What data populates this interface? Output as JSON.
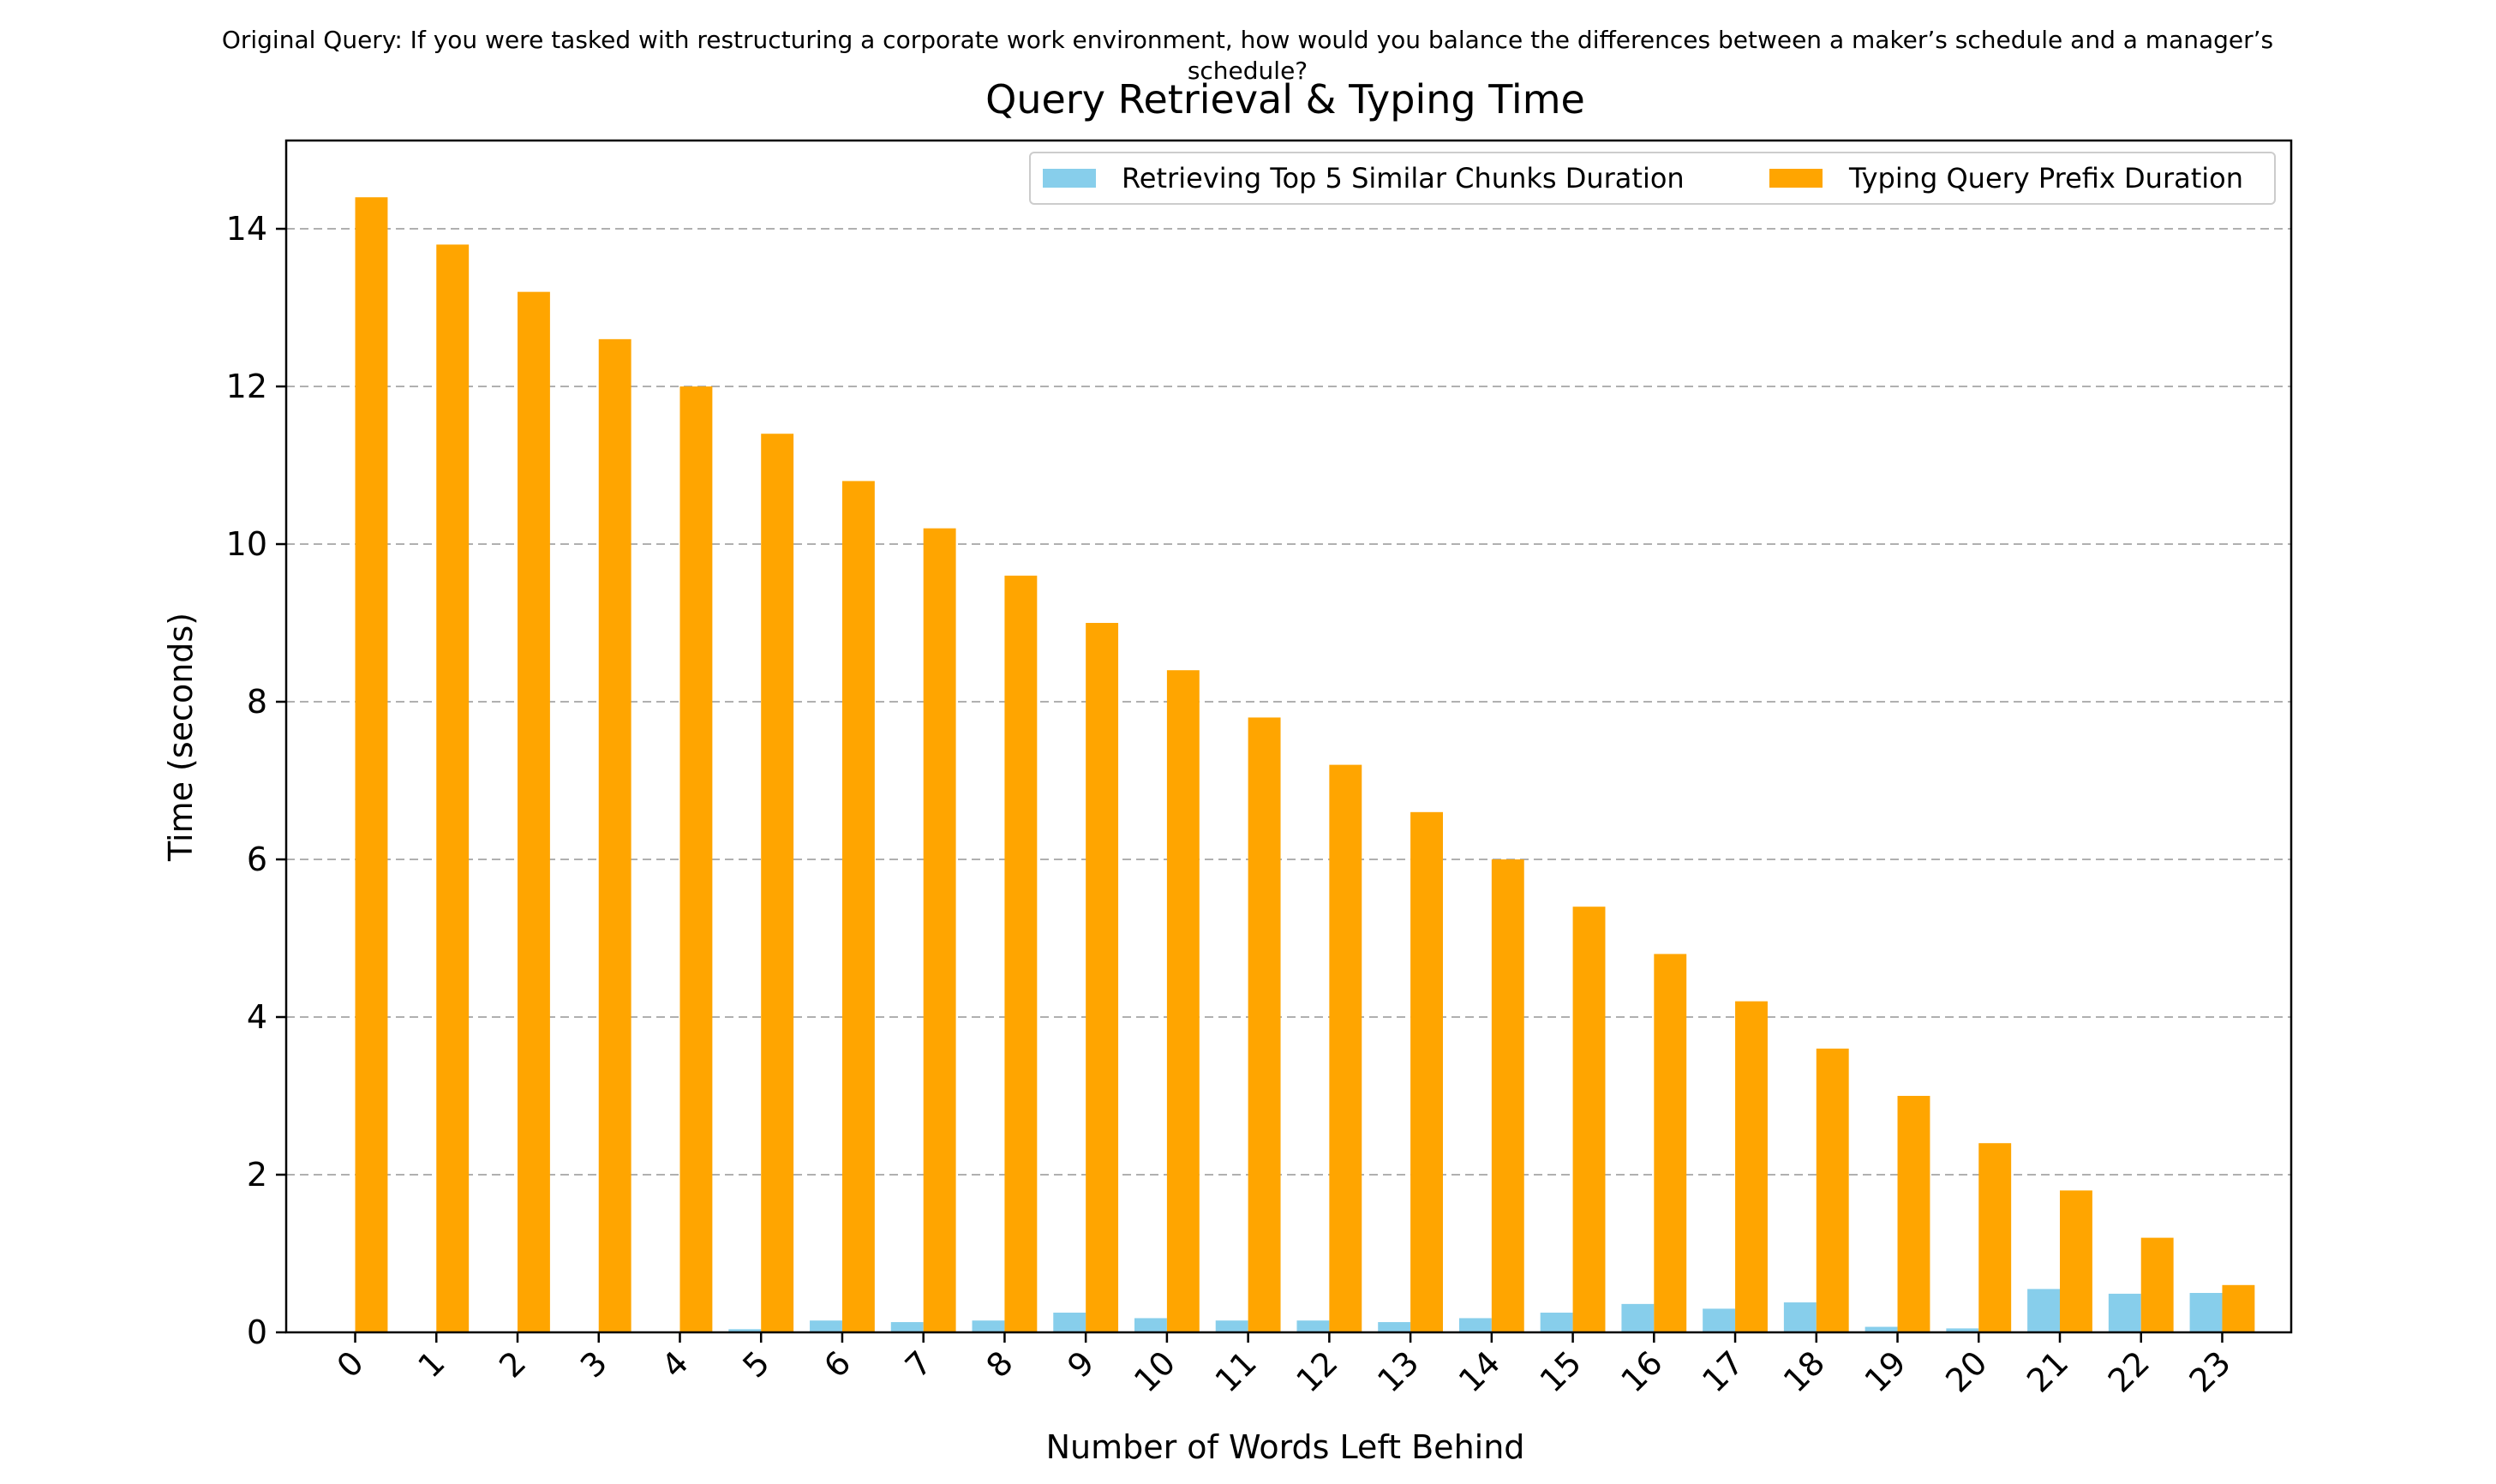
{
  "suptitle": "Original Query: If you were tasked with restructuring a corporate work environment, how would you balance the differences between a maker’s schedule and a manager’s schedule?",
  "chart_data": {
    "type": "bar",
    "title": "Query Retrieval & Typing Time",
    "xlabel": "Number of Words Left Behind",
    "ylabel": "Time (seconds)",
    "categories": [
      "0",
      "1",
      "2",
      "3",
      "4",
      "5",
      "6",
      "7",
      "8",
      "9",
      "10",
      "11",
      "12",
      "13",
      "14",
      "15",
      "16",
      "17",
      "18",
      "19",
      "20",
      "21",
      "22",
      "23"
    ],
    "series": [
      {
        "name": "Retrieving Top 5 Similar Chunks Duration",
        "color": "#87ceeb",
        "values": [
          0,
          0,
          0,
          0,
          0,
          0.04,
          0.15,
          0.13,
          0.15,
          0.25,
          0.18,
          0.15,
          0.15,
          0.13,
          0.18,
          0.25,
          0.36,
          0.3,
          0.38,
          0.07,
          0.05,
          0.55,
          0.49,
          0.5
        ]
      },
      {
        "name": "Typing Query Prefix Duration",
        "color": "#ffa500",
        "values": [
          14.4,
          13.8,
          13.2,
          12.6,
          12.0,
          11.4,
          10.8,
          10.2,
          9.6,
          9.0,
          8.4,
          7.8,
          7.2,
          6.6,
          6.0,
          5.4,
          4.8,
          4.2,
          3.6,
          3.0,
          2.4,
          1.8,
          1.2,
          0.6
        ]
      }
    ],
    "ylim": [
      0,
      15.12
    ],
    "yticks": [
      0,
      2,
      4,
      6,
      8,
      10,
      12,
      14
    ],
    "grid": "y-dashed",
    "legend": "top-right"
  }
}
